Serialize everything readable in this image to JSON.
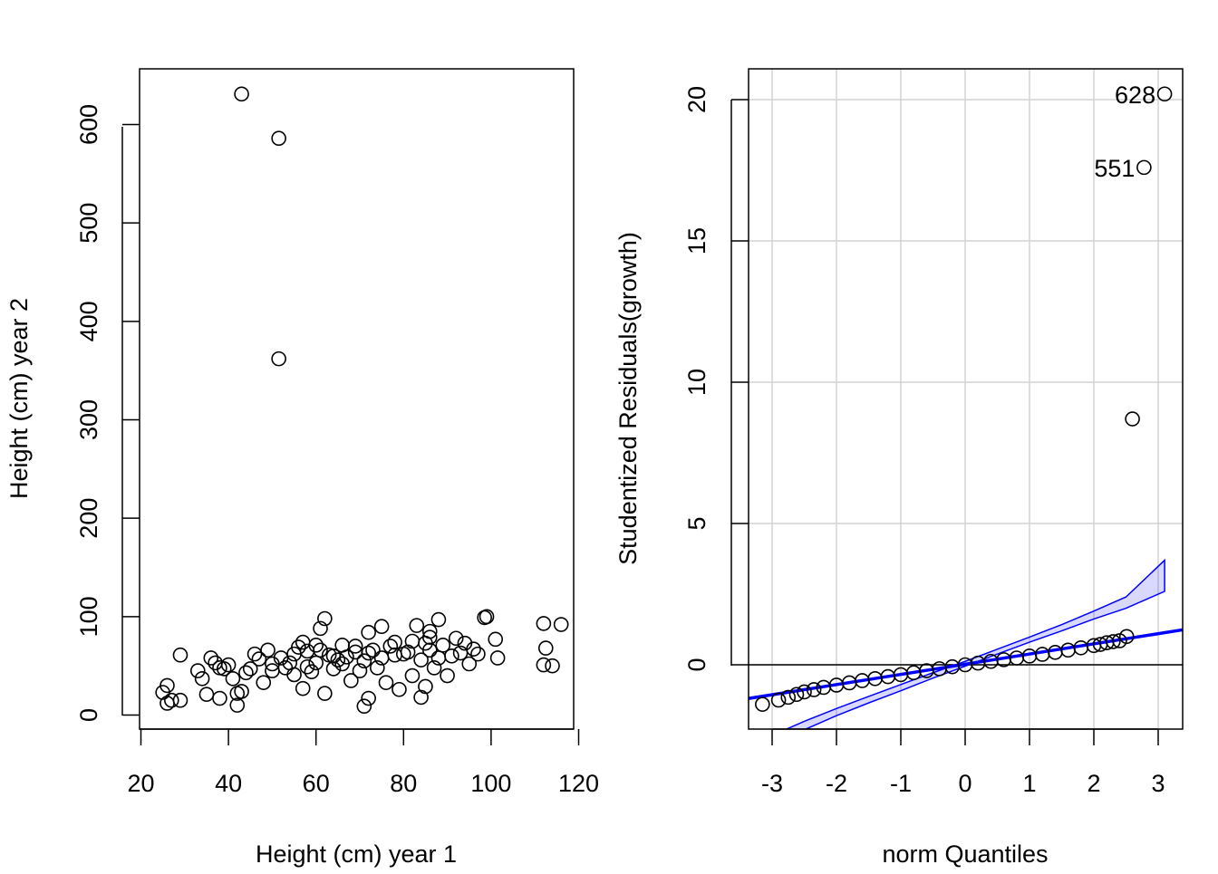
{
  "chart_data": [
    {
      "type": "scatter",
      "title": "",
      "xlabel": "Height (cm) year 1",
      "ylabel": "Height (cm) year 2",
      "xlim": [
        20,
        120
      ],
      "ylim": [
        0,
        630
      ],
      "xticks": [
        "20",
        "40",
        "60",
        "80",
        "100",
        "120"
      ],
      "yticks": [
        "0",
        "100",
        "200",
        "300",
        "400",
        "500",
        "600"
      ],
      "grid": false,
      "series": [
        {
          "name": "observations",
          "points": [
            [
              43,
              631
            ],
            [
              51.5,
              586
            ],
            [
              51.5,
              362
            ],
            [
              112,
              93
            ],
            [
              116,
              92
            ],
            [
              112.5,
              68
            ],
            [
              112,
              51
            ],
            [
              114,
              50
            ],
            [
              101,
              77
            ],
            [
              101.5,
              58
            ],
            [
              99,
              100
            ],
            [
              98.5,
              99
            ],
            [
              94,
              73
            ],
            [
              92,
              78
            ],
            [
              88,
              97
            ],
            [
              90,
              40
            ],
            [
              86,
              85
            ],
            [
              85,
              29
            ],
            [
              84,
              18
            ],
            [
              72,
              17
            ],
            [
              71,
              9
            ],
            [
              42,
              10
            ],
            [
              38,
              17
            ],
            [
              26,
              12
            ],
            [
              27,
              15
            ],
            [
              25,
              23
            ],
            [
              26,
              30
            ],
            [
              29,
              15
            ],
            [
              29,
              61
            ],
            [
              33,
              45
            ],
            [
              34,
              37
            ],
            [
              35,
              21
            ],
            [
              37,
              53
            ],
            [
              38,
              48
            ],
            [
              39,
              47
            ],
            [
              41,
              37
            ],
            [
              42,
              22
            ],
            [
              43,
              24
            ],
            [
              45,
              47
            ],
            [
              46,
              62
            ],
            [
              48,
              33
            ],
            [
              49,
              66
            ],
            [
              50,
              52
            ],
            [
              52,
              58
            ],
            [
              55,
              41
            ],
            [
              56,
              69
            ],
            [
              57,
              27
            ],
            [
              58,
              65
            ],
            [
              60,
              53
            ],
            [
              61,
              88
            ],
            [
              62,
              98
            ],
            [
              62,
              22
            ],
            [
              64,
              47
            ],
            [
              66,
              71
            ],
            [
              68,
              35
            ],
            [
              69,
              64
            ],
            [
              70,
              45
            ],
            [
              72,
              84
            ],
            [
              74,
              48
            ],
            [
              75,
              90
            ],
            [
              76,
              33
            ],
            [
              78,
              74
            ],
            [
              79,
              26
            ],
            [
              80,
              62
            ],
            [
              82,
              40
            ],
            [
              83,
              91
            ],
            [
              84,
              56
            ],
            [
              86,
              66
            ],
            [
              87,
              48
            ],
            [
              89,
              71
            ],
            [
              91,
              60
            ],
            [
              93,
              63
            ],
            [
              95,
              52
            ],
            [
              96,
              67
            ],
            [
              97,
              62
            ],
            [
              36,
              58
            ],
            [
              40,
              51
            ],
            [
              44,
              43
            ],
            [
              47,
              57
            ],
            [
              53,
              48
            ],
            [
              55,
              62
            ],
            [
              59,
              44
            ],
            [
              63,
              61
            ],
            [
              65,
              56
            ],
            [
              67,
              59
            ],
            [
              71,
              55
            ],
            [
              73,
              66
            ],
            [
              77,
              70
            ],
            [
              81,
              64
            ],
            [
              85,
              73
            ],
            [
              88,
              58
            ],
            [
              54,
              53
            ],
            [
              58,
              49
            ],
            [
              61,
              66
            ],
            [
              64,
              60
            ],
            [
              66,
              52
            ],
            [
              69,
              70
            ],
            [
              72,
              63
            ],
            [
              75,
              58
            ],
            [
              78,
              61
            ],
            [
              82,
              75
            ],
            [
              86,
              79
            ],
            [
              57,
              74
            ],
            [
              60,
              71
            ],
            [
              50,
              45
            ]
          ]
        }
      ]
    },
    {
      "type": "scatter",
      "title": "",
      "xlabel": "norm Quantiles",
      "ylabel": "Studentized Residuals(growth)",
      "xlim": [
        -3.4,
        3.4
      ],
      "ylim": [
        -2.3,
        21
      ],
      "xticks": [
        "-3",
        "-2",
        "-1",
        "0",
        "1",
        "2",
        "3"
      ],
      "yticks": [
        "0",
        "5",
        "10",
        "15",
        "20"
      ],
      "grid": true,
      "reference_line": {
        "intercept": 0.02,
        "slope": 0.36,
        "color": "#0000ff"
      },
      "confidence_envelope": {
        "x": [
          -3.1,
          -2.5,
          -2.0,
          -1.5,
          -1.0,
          -0.5,
          0.0,
          0.5,
          1.0,
          1.5,
          2.0,
          2.5,
          3.1
        ],
        "lower": [
          -2.8,
          -2.3,
          -1.8,
          -1.35,
          -0.92,
          -0.47,
          -0.05,
          0.38,
          0.8,
          1.2,
          1.62,
          2.0,
          2.6
        ],
        "upper": [
          -2.6,
          -2.0,
          -1.55,
          -1.12,
          -0.7,
          -0.28,
          0.12,
          0.55,
          0.98,
          1.42,
          1.9,
          2.4,
          3.7
        ],
        "color": "#0000ff"
      },
      "horizontal_line": {
        "y": 0,
        "color": "#000000"
      },
      "annotations": [
        {
          "label": "628",
          "x": 3.1,
          "y": 20.2
        },
        {
          "label": "551",
          "x": 2.78,
          "y": 17.6
        }
      ],
      "series": [
        {
          "name": "residuals",
          "points": [
            [
              3.1,
              20.2
            ],
            [
              2.78,
              17.6
            ],
            [
              2.6,
              8.7
            ],
            [
              2.51,
              1.0
            ],
            [
              2.4,
              0.85
            ],
            [
              2.3,
              0.82
            ],
            [
              2.2,
              0.78
            ],
            [
              2.1,
              0.72
            ],
            [
              2.0,
              0.68
            ],
            [
              1.8,
              0.6
            ],
            [
              1.6,
              0.52
            ],
            [
              1.4,
              0.44
            ],
            [
              1.2,
              0.37
            ],
            [
              1.0,
              0.31
            ],
            [
              0.8,
              0.24
            ],
            [
              0.6,
              0.18
            ],
            [
              0.4,
              0.12
            ],
            [
              0.2,
              0.06
            ],
            [
              0.0,
              0.0
            ],
            [
              -0.2,
              -0.07
            ],
            [
              -0.4,
              -0.14
            ],
            [
              -0.6,
              -0.21
            ],
            [
              -0.8,
              -0.28
            ],
            [
              -1.0,
              -0.35
            ],
            [
              -1.2,
              -0.42
            ],
            [
              -1.4,
              -0.49
            ],
            [
              -1.6,
              -0.56
            ],
            [
              -1.8,
              -0.64
            ],
            [
              -2.0,
              -0.72
            ],
            [
              -2.2,
              -0.8
            ],
            [
              -2.35,
              -0.88
            ],
            [
              -2.5,
              -0.96
            ],
            [
              -2.62,
              -1.05
            ],
            [
              -2.75,
              -1.15
            ],
            [
              -2.9,
              -1.25
            ],
            [
              -3.15,
              -1.4
            ]
          ]
        }
      ]
    }
  ]
}
